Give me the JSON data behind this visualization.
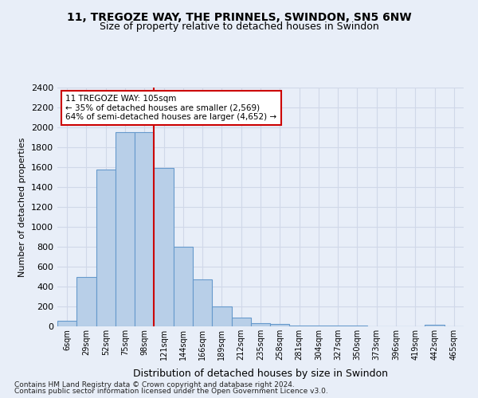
{
  "title_line1": "11, TREGOZE WAY, THE PRINNELS, SWINDON, SN5 6NW",
  "title_line2": "Size of property relative to detached houses in Swindon",
  "xlabel": "Distribution of detached houses by size in Swindon",
  "ylabel": "Number of detached properties",
  "footer_line1": "Contains HM Land Registry data © Crown copyright and database right 2024.",
  "footer_line2": "Contains public sector information licensed under the Open Government Licence v3.0.",
  "annotation_line1": "11 TREGOZE WAY: 105sqm",
  "annotation_line2": "← 35% of detached houses are smaller (2,569)",
  "annotation_line3": "64% of semi-detached houses are larger (4,652) →",
  "bar_labels": [
    "6sqm",
    "29sqm",
    "52sqm",
    "75sqm",
    "98sqm",
    "121sqm",
    "144sqm",
    "166sqm",
    "189sqm",
    "212sqm",
    "235sqm",
    "258sqm",
    "281sqm",
    "304sqm",
    "327sqm",
    "350sqm",
    "373sqm",
    "396sqm",
    "419sqm",
    "442sqm",
    "465sqm"
  ],
  "bar_values": [
    55,
    500,
    1580,
    1950,
    1950,
    1590,
    800,
    475,
    200,
    90,
    35,
    25,
    5,
    5,
    5,
    5,
    0,
    0,
    0,
    20,
    0
  ],
  "bar_color": "#b8cfe8",
  "bar_edge_color": "#6699cc",
  "highlight_line_color": "#cc0000",
  "highlight_line_index": 4,
  "ylim": [
    0,
    2400
  ],
  "yticks": [
    0,
    200,
    400,
    600,
    800,
    1000,
    1200,
    1400,
    1600,
    1800,
    2000,
    2200,
    2400
  ],
  "grid_color": "#d0d8e8",
  "bg_color": "#e8eef8",
  "annotation_box_color": "#ffffff",
  "annotation_box_edge": "#cc0000",
  "title_fontsize": 10,
  "subtitle_fontsize": 9,
  "ylabel_fontsize": 8,
  "xlabel_fontsize": 9,
  "tick_labelsize": 8,
  "xtick_labelsize": 7,
  "footer_fontsize": 6.5,
  "annotation_fontsize": 7.5
}
